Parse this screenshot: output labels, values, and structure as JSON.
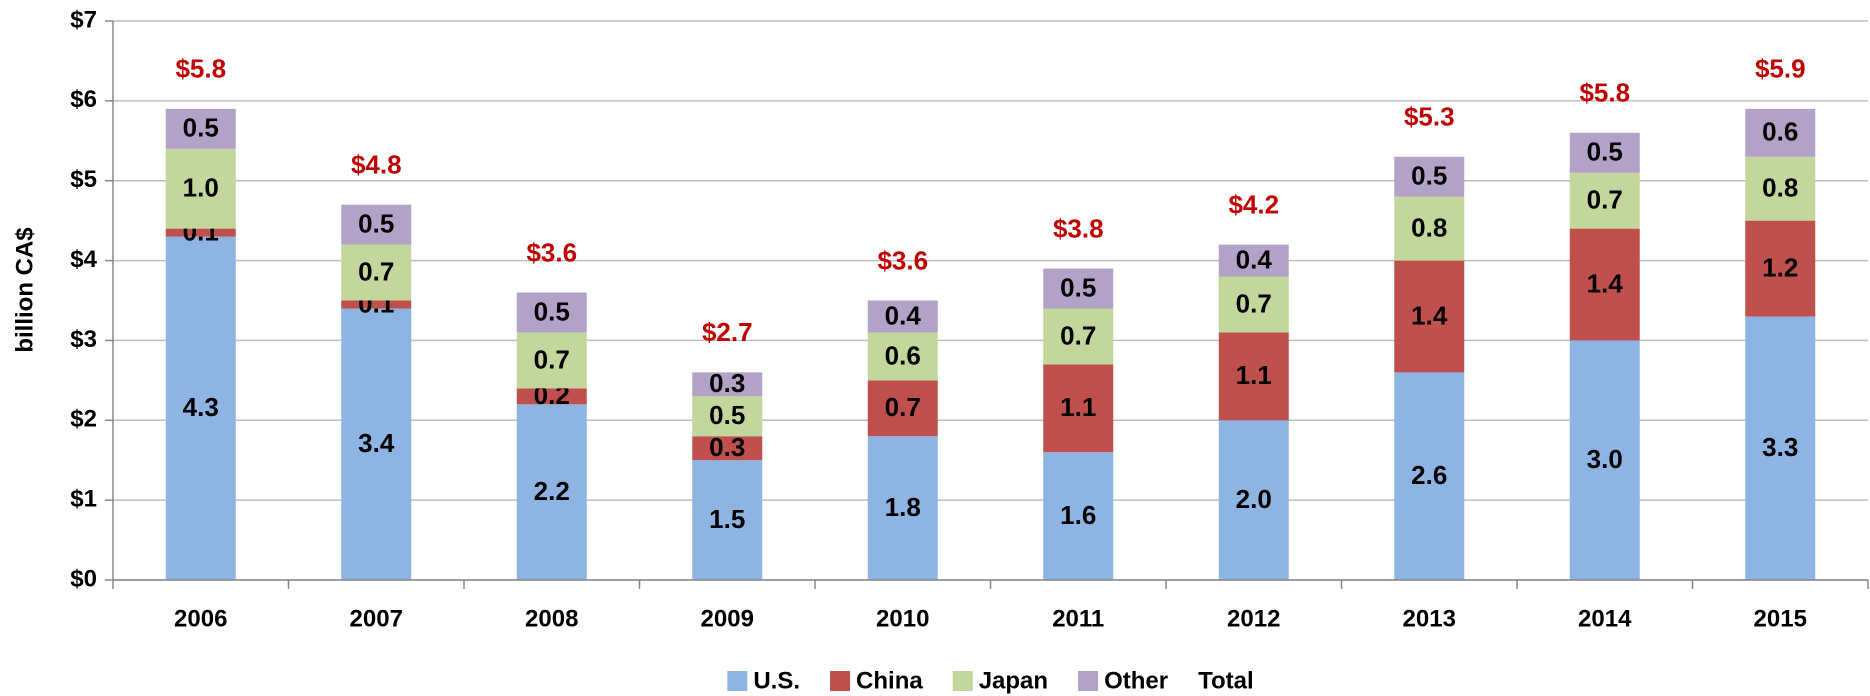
{
  "chart_data": {
    "type": "stacked-bar",
    "ylabel": "billion CA$",
    "categories": [
      "2006",
      "2007",
      "2008",
      "2009",
      "2010",
      "2011",
      "2012",
      "2013",
      "2014",
      "2015"
    ],
    "series": [
      {
        "name": "U.S.",
        "color": "#8eb4e3",
        "values": [
          4.3,
          3.4,
          2.2,
          1.5,
          1.8,
          1.6,
          2.0,
          2.6,
          3.0,
          3.3
        ],
        "value_labels": [
          "4.3",
          "3.4",
          "2.2",
          "1.5",
          "1.8",
          "1.6",
          "2.0",
          "2.6",
          "3.0",
          "3.3"
        ]
      },
      {
        "name": "China",
        "color": "#c0504d",
        "values": [
          0.1,
          0.1,
          0.2,
          0.3,
          0.7,
          1.1,
          1.1,
          1.4,
          1.4,
          1.2
        ],
        "value_labels": [
          "0.1",
          "0.1",
          "0.2",
          "0.3",
          "0.7",
          "1.1",
          "1.1",
          "1.4",
          "1.4",
          "1.2"
        ]
      },
      {
        "name": "Japan",
        "color": "#c3d69b",
        "values": [
          1.0,
          0.7,
          0.7,
          0.5,
          0.6,
          0.7,
          0.7,
          0.8,
          0.7,
          0.8
        ],
        "value_labels": [
          "1.0",
          "0.7",
          "0.7",
          "0.5",
          "0.6",
          "0.7",
          "0.7",
          "0.8",
          "0.7",
          "0.8"
        ]
      },
      {
        "name": "Other",
        "color": "#b3a2c7",
        "values": [
          0.5,
          0.5,
          0.5,
          0.3,
          0.4,
          0.5,
          0.4,
          0.5,
          0.5,
          0.6
        ],
        "value_labels": [
          "0.5",
          "0.5",
          "0.5",
          "0.3",
          "0.4",
          "0.5",
          "0.4",
          "0.5",
          "0.5",
          "0.6"
        ]
      },
      {
        "name": "Total",
        "label_color": "#c00000",
        "values": [
          5.8,
          4.8,
          3.6,
          2.7,
          3.6,
          3.8,
          4.2,
          5.3,
          5.8,
          5.9
        ],
        "value_labels": [
          "$5.8",
          "$4.8",
          "$3.6",
          "$2.7",
          "$3.6",
          "$3.8",
          "$4.2",
          "$5.3",
          "$5.8",
          "$5.9"
        ]
      }
    ],
    "ylim": [
      0,
      7
    ],
    "yticks": [
      {
        "value": 0,
        "label": "$0"
      },
      {
        "value": 1,
        "label": "$1"
      },
      {
        "value": 2,
        "label": "$2"
      },
      {
        "value": 3,
        "label": "$3"
      },
      {
        "value": 4,
        "label": "$4"
      },
      {
        "value": 5,
        "label": "$5"
      },
      {
        "value": 6,
        "label": "$6"
      },
      {
        "value": 7,
        "label": "$7"
      }
    ],
    "grid": true
  }
}
